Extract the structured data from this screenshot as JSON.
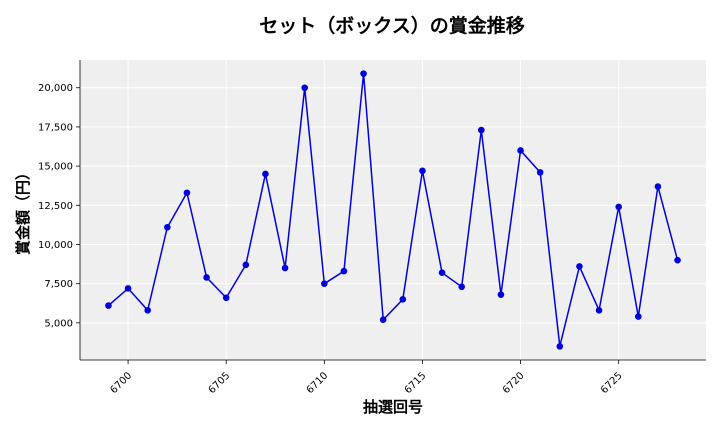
{
  "chart_data": {
    "type": "line",
    "title": "セット（ボックス）の賞金推移",
    "xlabel": "抽選回号",
    "ylabel": "賞金額（円）",
    "x": [
      6699,
      6700,
      6701,
      6702,
      6703,
      6704,
      6705,
      6706,
      6707,
      6708,
      6709,
      6710,
      6711,
      6712,
      6713,
      6714,
      6715,
      6716,
      6717,
      6718,
      6719,
      6720,
      6721,
      6722,
      6723,
      6724,
      6725,
      6726,
      6727,
      6728
    ],
    "series": [
      {
        "values": [
          6100,
          7200,
          5800,
          11100,
          13300,
          7900,
          6600,
          8700,
          14500,
          8500,
          20000,
          7500,
          8300,
          20900,
          5200,
          6500,
          14700,
          8200,
          7300,
          17300,
          6800,
          16000,
          14600,
          3500,
          8600,
          5800,
          12400,
          5400,
          13700,
          9000
        ],
        "color": "#0000dd"
      }
    ],
    "xticks": [
      6700,
      6705,
      6710,
      6715,
      6720,
      6725
    ],
    "xtick_labels": [
      "6700",
      "6705",
      "6710",
      "6715",
      "6720",
      "6725"
    ],
    "yticks": [
      5000,
      7500,
      10000,
      12500,
      15000,
      17500,
      20000
    ],
    "ytick_labels": [
      "5,000",
      "7,500",
      "10,000",
      "12,500",
      "15,000",
      "17,500",
      "20,000"
    ],
    "xlim": [
      6697.55,
      6729.45
    ],
    "ylim": [
      2630,
      21770
    ],
    "grid": true,
    "plot_background": "#efefef",
    "line_color": "#0000dd",
    "marker_color": "#0000dd"
  }
}
